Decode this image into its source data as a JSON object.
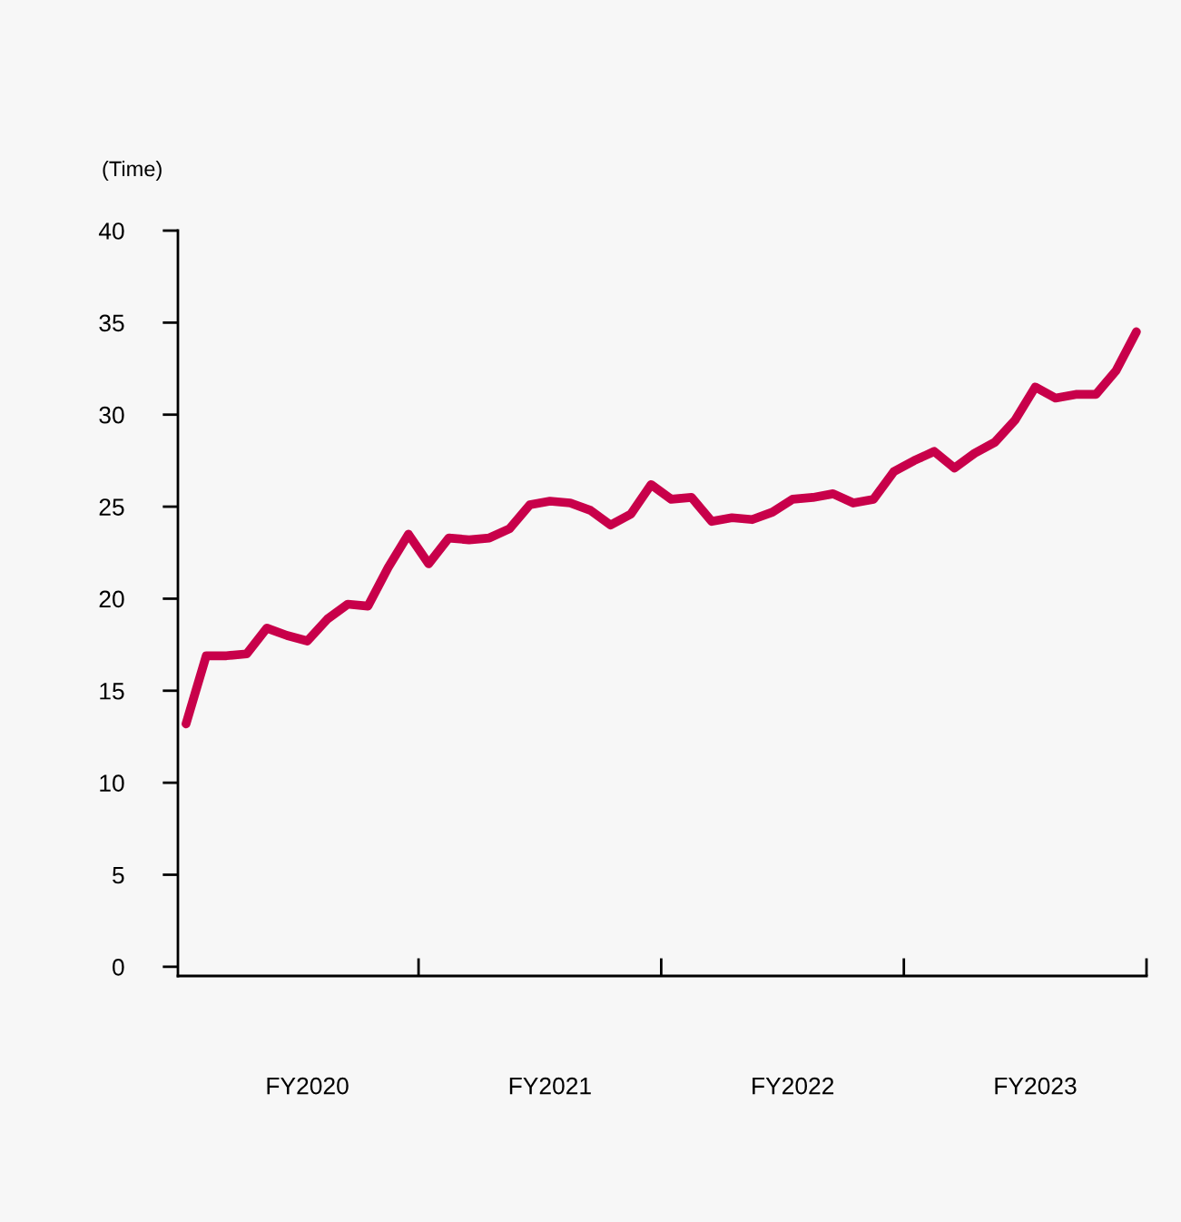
{
  "chart_data": {
    "type": "line",
    "ylabel": "(Time)",
    "color": "#c8004a",
    "line_style": "solid",
    "marker": "none",
    "grid": false,
    "legend": false,
    "categories": [
      null,
      null,
      null,
      null,
      null,
      null,
      "FY2020",
      null,
      null,
      null,
      null,
      null,
      null,
      null,
      null,
      null,
      null,
      null,
      "FY2021",
      null,
      null,
      null,
      null,
      null,
      null,
      null,
      null,
      null,
      null,
      null,
      "FY2022",
      null,
      null,
      null,
      null,
      null,
      null,
      null,
      null,
      null,
      null,
      null,
      "FY2023",
      null,
      null,
      null,
      null,
      null
    ],
    "values": [
      13.2,
      16.9,
      16.9,
      17.0,
      18.4,
      18.0,
      17.7,
      18.9,
      19.7,
      19.6,
      21.7,
      23.5,
      21.9,
      23.3,
      23.2,
      23.3,
      23.8,
      25.1,
      25.3,
      25.2,
      24.8,
      24.0,
      24.6,
      26.2,
      25.4,
      25.5,
      24.2,
      24.4,
      24.3,
      24.7,
      25.4,
      25.5,
      25.7,
      25.2,
      25.4,
      26.9,
      27.5,
      28.0,
      27.1,
      27.9,
      28.5,
      29.7,
      31.5,
      30.9,
      31.1,
      31.1,
      32.4,
      34.5
    ],
    "ylim": [
      -0.5,
      40
    ],
    "yticks": [
      0,
      5,
      10,
      15,
      20,
      25,
      30,
      35,
      40
    ]
  }
}
